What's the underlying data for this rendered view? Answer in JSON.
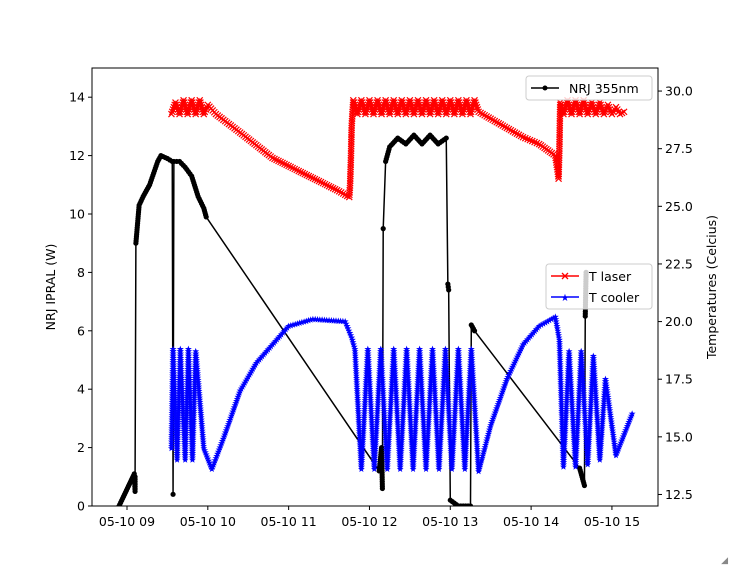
{
  "chart_data": {
    "type": "line",
    "xlabel": "",
    "ylabel_left": "NRJ IPRAL (W)",
    "ylabel_right": "Temperatures (Celcius)",
    "xlim_hours": [
      8.567,
      15.57
    ],
    "ylim_left": [
      0,
      15
    ],
    "ylim_right": [
      12,
      31
    ],
    "x_ticks": [
      {
        "value": 9,
        "label": "05-10 09"
      },
      {
        "value": 10,
        "label": "05-10 10"
      },
      {
        "value": 11,
        "label": "05-10 11"
      },
      {
        "value": 12,
        "label": "05-10 12"
      },
      {
        "value": 13,
        "label": "05-10 13"
      },
      {
        "value": 14,
        "label": "05-10 14"
      },
      {
        "value": 15,
        "label": "05-10 15"
      }
    ],
    "y_ticks_left": [
      0,
      2,
      4,
      6,
      8,
      10,
      12,
      14
    ],
    "y_ticks_right": [
      "12.5",
      "15.0",
      "17.5",
      "20.0",
      "22.5",
      "25.0",
      "27.5",
      "30.0"
    ],
    "legends": [
      {
        "placement": "upper-right",
        "entries": [
          "NRJ 355nm"
        ]
      },
      {
        "placement": "center-right",
        "entries": [
          "T laser",
          "T cooler"
        ]
      }
    ],
    "series": [
      {
        "name": "NRJ 355nm",
        "axis": "left",
        "color": "#000000",
        "marker": "circle",
        "points": [
          [
            8.85,
            -0.3
          ],
          [
            9.09,
            1.1
          ],
          [
            9.1,
            0.5
          ],
          [
            9.1,
            1.0
          ],
          [
            9.11,
            9.0
          ],
          [
            9.15,
            10.3
          ],
          [
            9.2,
            10.6
          ],
          [
            9.28,
            11.0
          ],
          [
            9.33,
            11.4
          ],
          [
            9.38,
            11.8
          ],
          [
            9.42,
            12.0
          ],
          [
            9.5,
            11.9
          ],
          [
            9.56,
            11.8
          ],
          [
            9.57,
            0.4
          ],
          [
            9.58,
            11.8
          ],
          [
            9.65,
            11.8
          ],
          [
            9.72,
            11.6
          ],
          [
            9.8,
            11.3
          ],
          [
            9.88,
            10.6
          ],
          [
            9.95,
            10.2
          ],
          [
            9.98,
            9.9
          ],
          [
            12.12,
            1.2
          ],
          [
            12.15,
            2.0
          ],
          [
            12.16,
            0.6
          ],
          [
            12.17,
            9.5
          ],
          [
            12.2,
            11.8
          ],
          [
            12.25,
            12.3
          ],
          [
            12.35,
            12.6
          ],
          [
            12.45,
            12.4
          ],
          [
            12.55,
            12.7
          ],
          [
            12.65,
            12.4
          ],
          [
            12.75,
            12.7
          ],
          [
            12.85,
            12.4
          ],
          [
            12.95,
            12.6
          ],
          [
            12.97,
            7.6
          ],
          [
            12.98,
            7.4
          ],
          [
            13.0,
            0.2
          ],
          [
            13.1,
            0.0
          ],
          [
            13.25,
            0.0
          ],
          [
            13.26,
            6.2
          ],
          [
            13.3,
            6.0
          ],
          [
            14.6,
            1.3
          ],
          [
            14.66,
            0.7
          ],
          [
            14.67,
            6.5
          ],
          [
            14.68,
            8.0
          ]
        ]
      },
      {
        "name": "T laser",
        "axis": "right",
        "color": "#ff0000",
        "marker": "x",
        "points": [
          [
            9.55,
            29.0
          ],
          [
            9.6,
            29.5
          ],
          [
            9.65,
            29.0
          ],
          [
            9.7,
            29.6
          ],
          [
            9.75,
            29.0
          ],
          [
            9.8,
            29.6
          ],
          [
            9.85,
            29.0
          ],
          [
            9.9,
            29.6
          ],
          [
            9.95,
            29.0
          ],
          [
            10.0,
            29.4
          ],
          [
            10.1,
            29.0
          ],
          [
            10.4,
            28.2
          ],
          [
            10.8,
            27.1
          ],
          [
            11.2,
            26.4
          ],
          [
            11.6,
            25.7
          ],
          [
            11.75,
            25.4
          ],
          [
            11.76,
            25.9
          ],
          [
            11.77,
            27.0
          ],
          [
            11.78,
            28.5
          ],
          [
            11.8,
            29.6
          ],
          [
            11.85,
            29.0
          ],
          [
            11.9,
            29.6
          ],
          [
            11.95,
            29.0
          ],
          [
            12.0,
            29.6
          ],
          [
            12.05,
            29.0
          ],
          [
            12.1,
            29.6
          ],
          [
            12.15,
            29.0
          ],
          [
            12.2,
            29.6
          ],
          [
            12.25,
            29.0
          ],
          [
            12.3,
            29.6
          ],
          [
            12.35,
            29.0
          ],
          [
            12.4,
            29.6
          ],
          [
            12.45,
            29.0
          ],
          [
            12.5,
            29.6
          ],
          [
            12.55,
            29.0
          ],
          [
            12.6,
            29.6
          ],
          [
            12.65,
            29.0
          ],
          [
            12.7,
            29.6
          ],
          [
            12.75,
            29.0
          ],
          [
            12.8,
            29.6
          ],
          [
            12.85,
            29.0
          ],
          [
            12.9,
            29.6
          ],
          [
            12.95,
            29.0
          ],
          [
            13.0,
            29.6
          ],
          [
            13.05,
            29.0
          ],
          [
            13.1,
            29.6
          ],
          [
            13.15,
            29.0
          ],
          [
            13.2,
            29.6
          ],
          [
            13.25,
            29.0
          ],
          [
            13.3,
            29.6
          ],
          [
            13.35,
            29.1
          ],
          [
            13.6,
            28.6
          ],
          [
            13.9,
            28.0
          ],
          [
            14.1,
            27.7
          ],
          [
            14.3,
            27.2
          ],
          [
            14.33,
            26.5
          ],
          [
            14.34,
            26.2
          ],
          [
            14.35,
            27.5
          ],
          [
            14.36,
            29.5
          ],
          [
            14.4,
            29.0
          ],
          [
            14.45,
            29.6
          ],
          [
            14.5,
            29.0
          ],
          [
            14.55,
            29.6
          ],
          [
            14.6,
            29.0
          ],
          [
            14.65,
            29.6
          ],
          [
            14.7,
            29.0
          ],
          [
            14.75,
            29.5
          ],
          [
            14.8,
            29.0
          ],
          [
            14.85,
            29.5
          ],
          [
            14.9,
            29.0
          ],
          [
            14.95,
            29.4
          ],
          [
            15.0,
            29.0
          ],
          [
            15.05,
            29.3
          ],
          [
            15.1,
            29.0
          ],
          [
            15.15,
            29.1
          ]
        ]
      },
      {
        "name": "T cooler",
        "axis": "right",
        "color": "#0000ff",
        "marker": "star",
        "points": [
          [
            9.55,
            14.5
          ],
          [
            9.57,
            18.8
          ],
          [
            9.62,
            14.0
          ],
          [
            9.66,
            18.8
          ],
          [
            9.72,
            14.0
          ],
          [
            9.76,
            18.8
          ],
          [
            9.81,
            14.0
          ],
          [
            9.85,
            18.7
          ],
          [
            9.95,
            14.5
          ],
          [
            10.05,
            13.6
          ],
          [
            10.2,
            15.0
          ],
          [
            10.4,
            17.0
          ],
          [
            10.6,
            18.2
          ],
          [
            10.8,
            19.0
          ],
          [
            11.0,
            19.8
          ],
          [
            11.3,
            20.1
          ],
          [
            11.7,
            20.0
          ],
          [
            11.78,
            19.3
          ],
          [
            11.82,
            18.8
          ],
          [
            11.9,
            13.6
          ],
          [
            11.98,
            18.8
          ],
          [
            12.06,
            13.6
          ],
          [
            12.14,
            18.8
          ],
          [
            12.22,
            13.6
          ],
          [
            12.3,
            18.8
          ],
          [
            12.38,
            13.6
          ],
          [
            12.46,
            18.8
          ],
          [
            12.54,
            13.6
          ],
          [
            12.62,
            18.8
          ],
          [
            12.7,
            13.6
          ],
          [
            12.78,
            18.8
          ],
          [
            12.86,
            13.6
          ],
          [
            12.94,
            18.8
          ],
          [
            13.02,
            13.6
          ],
          [
            13.1,
            18.8
          ],
          [
            13.18,
            13.6
          ],
          [
            13.26,
            18.8
          ],
          [
            13.35,
            13.5
          ],
          [
            13.5,
            15.5
          ],
          [
            13.7,
            17.5
          ],
          [
            13.9,
            19.0
          ],
          [
            14.1,
            19.8
          ],
          [
            14.3,
            20.2
          ],
          [
            14.35,
            19.2
          ],
          [
            14.4,
            13.7
          ],
          [
            14.47,
            18.7
          ],
          [
            14.55,
            13.7
          ],
          [
            14.62,
            18.7
          ],
          [
            14.7,
            13.8
          ],
          [
            14.77,
            18.5
          ],
          [
            14.85,
            14.0
          ],
          [
            14.92,
            17.5
          ],
          [
            15.05,
            14.2
          ],
          [
            15.25,
            16.0
          ]
        ]
      }
    ]
  }
}
